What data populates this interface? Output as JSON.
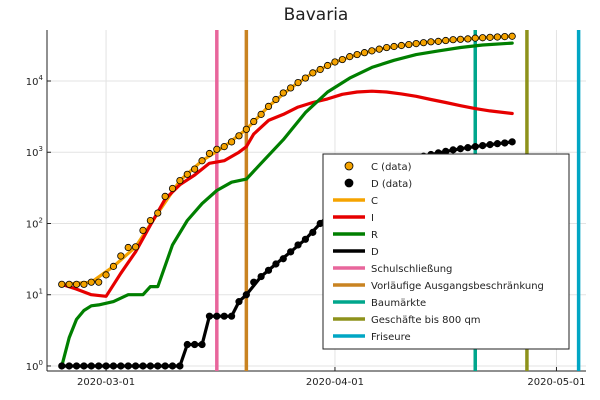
{
  "chart_data": {
    "type": "line",
    "title": "Bavaria",
    "xlabel": "",
    "ylabel": "",
    "y_scale": "log10",
    "ylim": [
      0.85,
      52000
    ],
    "xlim": [
      "2020-02-22",
      "2020-05-05"
    ],
    "x_ticks": [
      "2020-03-01",
      "2020-04-01",
      "2020-05-01"
    ],
    "y_ticks": [
      {
        "value": 1,
        "base": "10",
        "exp": "0"
      },
      {
        "value": 10,
        "base": "10",
        "exp": "1"
      },
      {
        "value": 100,
        "base": "10",
        "exp": "2"
      },
      {
        "value": 1000,
        "base": "10",
        "exp": "3"
      },
      {
        "value": 10000,
        "base": "10",
        "exp": "4"
      }
    ],
    "grid": true,
    "legend_position": "right",
    "series": [
      {
        "name": "C (data)",
        "kind": "points",
        "color": "#f5a300",
        "edge": "#000000",
        "x": [
          "2020-02-24",
          "2020-02-25",
          "2020-02-26",
          "2020-02-27",
          "2020-02-28",
          "2020-02-29",
          "2020-03-01",
          "2020-03-02",
          "2020-03-03",
          "2020-03-04",
          "2020-03-05",
          "2020-03-06",
          "2020-03-07",
          "2020-03-08",
          "2020-03-09",
          "2020-03-10",
          "2020-03-11",
          "2020-03-12",
          "2020-03-13",
          "2020-03-14",
          "2020-03-15",
          "2020-03-16",
          "2020-03-17",
          "2020-03-18",
          "2020-03-19",
          "2020-03-20",
          "2020-03-21",
          "2020-03-22",
          "2020-03-23",
          "2020-03-24",
          "2020-03-25",
          "2020-03-26",
          "2020-03-27",
          "2020-03-28",
          "2020-03-29",
          "2020-03-30",
          "2020-03-31",
          "2020-04-01",
          "2020-04-02",
          "2020-04-03",
          "2020-04-04",
          "2020-04-05",
          "2020-04-06",
          "2020-04-07",
          "2020-04-08",
          "2020-04-09",
          "2020-04-10",
          "2020-04-11",
          "2020-04-12",
          "2020-04-13",
          "2020-04-14",
          "2020-04-15",
          "2020-04-16",
          "2020-04-17",
          "2020-04-18",
          "2020-04-19",
          "2020-04-20",
          "2020-04-21",
          "2020-04-22",
          "2020-04-23",
          "2020-04-24",
          "2020-04-25"
        ],
        "y": [
          14,
          14,
          14,
          14,
          15,
          15,
          19,
          25,
          35,
          46,
          47,
          80,
          110,
          140,
          240,
          310,
          400,
          490,
          580,
          760,
          960,
          1100,
          1200,
          1400,
          1700,
          2100,
          2700,
          3400,
          4400,
          5500,
          6800,
          8000,
          9500,
          11000,
          13000,
          14500,
          16500,
          18500,
          20000,
          22000,
          23500,
          25000,
          26500,
          28000,
          29500,
          30500,
          31500,
          32500,
          33500,
          34500,
          35500,
          36000,
          37000,
          38000,
          38500,
          39000,
          40000,
          40500,
          41000,
          41500,
          42000,
          42500
        ]
      },
      {
        "name": "D (data)",
        "kind": "points",
        "color": "#000000",
        "edge": "#000000",
        "x": [
          "2020-02-24",
          "2020-02-25",
          "2020-02-26",
          "2020-02-27",
          "2020-02-28",
          "2020-02-29",
          "2020-03-01",
          "2020-03-02",
          "2020-03-03",
          "2020-03-04",
          "2020-03-05",
          "2020-03-06",
          "2020-03-07",
          "2020-03-08",
          "2020-03-09",
          "2020-03-10",
          "2020-03-11",
          "2020-03-12",
          "2020-03-13",
          "2020-03-14",
          "2020-03-15",
          "2020-03-16",
          "2020-03-17",
          "2020-03-18",
          "2020-03-19",
          "2020-03-20",
          "2020-03-21",
          "2020-03-22",
          "2020-03-23",
          "2020-03-24",
          "2020-03-25",
          "2020-03-26",
          "2020-03-27",
          "2020-03-28",
          "2020-03-29",
          "2020-03-30",
          "2020-03-31",
          "2020-04-01",
          "2020-04-02",
          "2020-04-03",
          "2020-04-04",
          "2020-04-05",
          "2020-04-06",
          "2020-04-07",
          "2020-04-08",
          "2020-04-09",
          "2020-04-10",
          "2020-04-11",
          "2020-04-12",
          "2020-04-13",
          "2020-04-14",
          "2020-04-15",
          "2020-04-16",
          "2020-04-17",
          "2020-04-18",
          "2020-04-19",
          "2020-04-20",
          "2020-04-21",
          "2020-04-22",
          "2020-04-23",
          "2020-04-24",
          "2020-04-25"
        ],
        "y": [
          1,
          1,
          1,
          1,
          1,
          1,
          1,
          1,
          1,
          1,
          1,
          1,
          1,
          1,
          1,
          1,
          1,
          2,
          2,
          2,
          5,
          5,
          5,
          5,
          8,
          10,
          15,
          18,
          22,
          27,
          32,
          40,
          50,
          60,
          75,
          100,
          120,
          160,
          200,
          250,
          320,
          380,
          440,
          500,
          580,
          640,
          700,
          760,
          820,
          880,
          930,
          980,
          1030,
          1080,
          1120,
          1160,
          1200,
          1240,
          1280,
          1320,
          1350,
          1400
        ]
      },
      {
        "name": "C",
        "kind": "line",
        "color": "#f5a300",
        "x": [
          "2020-02-24",
          "2020-02-28",
          "2020-03-02",
          "2020-03-05",
          "2020-03-08",
          "2020-03-11",
          "2020-03-14",
          "2020-03-17",
          "2020-03-20",
          "2020-03-23",
          "2020-03-26",
          "2020-03-29",
          "2020-04-01",
          "2020-04-04",
          "2020-04-07",
          "2020-04-10",
          "2020-04-13",
          "2020-04-16",
          "2020-04-19",
          "2020-04-22",
          "2020-04-25"
        ],
        "y": [
          14,
          15,
          25,
          47,
          140,
          400,
          760,
          1200,
          2100,
          4400,
          8000,
          13000,
          18500,
          23500,
          28000,
          31500,
          34500,
          37000,
          39000,
          41000,
          42500
        ]
      },
      {
        "name": "I",
        "kind": "line",
        "color": "#e60000",
        "x": [
          "2020-02-24",
          "2020-02-26",
          "2020-02-28",
          "2020-03-01",
          "2020-03-03",
          "2020-03-05",
          "2020-03-07",
          "2020-03-09",
          "2020-03-11",
          "2020-03-13",
          "2020-03-15",
          "2020-03-17",
          "2020-03-19",
          "2020-03-20",
          "2020-03-21",
          "2020-03-23",
          "2020-03-25",
          "2020-03-27",
          "2020-03-29",
          "2020-03-31",
          "2020-04-02",
          "2020-04-04",
          "2020-04-06",
          "2020-04-08",
          "2020-04-10",
          "2020-04-12",
          "2020-04-14",
          "2020-04-16",
          "2020-04-18",
          "2020-04-20",
          "2020-04-22",
          "2020-04-25"
        ],
        "y": [
          14,
          12,
          10,
          9.5,
          20,
          40,
          95,
          220,
          350,
          480,
          700,
          760,
          1000,
          1200,
          1800,
          2800,
          3400,
          4300,
          5000,
          5600,
          6500,
          7000,
          7200,
          7000,
          6600,
          6100,
          5500,
          5000,
          4500,
          4100,
          3800,
          3500
        ]
      },
      {
        "name": "R",
        "kind": "line",
        "color": "#007f00",
        "x": [
          "2020-02-24",
          "2020-02-25",
          "2020-02-26",
          "2020-02-27",
          "2020-02-28",
          "2020-02-29",
          "2020-03-02",
          "2020-03-04",
          "2020-03-06",
          "2020-03-07",
          "2020-03-08",
          "2020-03-10",
          "2020-03-12",
          "2020-03-14",
          "2020-03-16",
          "2020-03-18",
          "2020-03-20",
          "2020-03-22",
          "2020-03-25",
          "2020-03-28",
          "2020-03-31",
          "2020-04-03",
          "2020-04-06",
          "2020-04-09",
          "2020-04-12",
          "2020-04-15",
          "2020-04-18",
          "2020-04-21",
          "2020-04-25"
        ],
        "y": [
          1,
          2.5,
          4.5,
          6,
          7,
          7.2,
          8,
          10,
          10,
          13,
          13,
          50,
          110,
          190,
          290,
          380,
          420,
          700,
          1500,
          3600,
          7000,
          11000,
          15500,
          19500,
          23500,
          26500,
          29500,
          32000,
          34000
        ]
      },
      {
        "name": "D",
        "kind": "line",
        "color": "#000000",
        "x": [
          "2020-02-24",
          "2020-03-11",
          "2020-03-12",
          "2020-03-14",
          "2020-03-15",
          "2020-03-17",
          "2020-03-18",
          "2020-03-19",
          "2020-03-20",
          "2020-03-22",
          "2020-03-24",
          "2020-03-26",
          "2020-03-28",
          "2020-03-30",
          "2020-04-01",
          "2020-04-03",
          "2020-04-06",
          "2020-04-09",
          "2020-04-12",
          "2020-04-15",
          "2020-04-18",
          "2020-04-21",
          "2020-04-25"
        ],
        "y": [
          1,
          1,
          2,
          2,
          5,
          5,
          5,
          8,
          10,
          18,
          27,
          40,
          60,
          100,
          160,
          250,
          440,
          640,
          820,
          980,
          1120,
          1240,
          1400
        ]
      }
    ],
    "events": [
      {
        "name": "Schulschließung",
        "date": "2020-03-16",
        "color": "#e8669c"
      },
      {
        "name": "Vorläufige Ausgangsbeschränkung",
        "date": "2020-03-20",
        "color": "#c98321"
      },
      {
        "name": "Baumärkte",
        "date": "2020-04-20",
        "color": "#00a68c"
      },
      {
        "name": "Geschäfte bis 800 qm",
        "date": "2020-04-27",
        "color": "#8d921b"
      },
      {
        "name": "Friseure",
        "date": "2020-05-04",
        "color": "#00a6c4"
      }
    ],
    "legend": [
      {
        "label": "C (data)",
        "symbol": "marker",
        "color": "#f5a300"
      },
      {
        "label": "D (data)",
        "symbol": "marker",
        "color": "#000000"
      },
      {
        "label": "C",
        "symbol": "line",
        "color": "#f5a300"
      },
      {
        "label": "I",
        "symbol": "line",
        "color": "#e60000"
      },
      {
        "label": "R",
        "symbol": "line",
        "color": "#007f00"
      },
      {
        "label": "D",
        "symbol": "line",
        "color": "#000000"
      },
      {
        "label": "Schulschließung",
        "symbol": "line",
        "color": "#e8669c"
      },
      {
        "label": "Vorläufige Ausgangsbeschränkung",
        "symbol": "line",
        "color": "#c98321"
      },
      {
        "label": "Baumärkte",
        "symbol": "line",
        "color": "#00a68c"
      },
      {
        "label": "Geschäfte bis 800 qm",
        "symbol": "line",
        "color": "#8d921b"
      },
      {
        "label": "Friseure",
        "symbol": "line",
        "color": "#00a6c4"
      }
    ]
  }
}
